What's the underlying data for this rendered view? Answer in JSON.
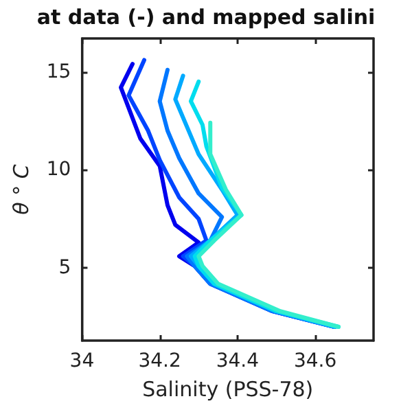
{
  "chart_data": {
    "type": "line",
    "title": "at data (-) and mapped salini",
    "xlabel": "Salinity (PSS-78)",
    "ylabel": "θ ° C",
    "xlim": [
      34,
      34.75
    ],
    "xticks": [
      34,
      34.2,
      34.4,
      34.6
    ],
    "ylim": [
      1.3,
      16.7
    ],
    "yticks": [
      5,
      10,
      15
    ],
    "grid": false,
    "marker": "none",
    "line_style": "solid",
    "series": [
      {
        "color": "#0000ee",
        "x": [
          34.65,
          34.49,
          34.33,
          34.29,
          34.25,
          34.3,
          34.24,
          34.22,
          34.2,
          34.15,
          34.1,
          34.13
        ],
        "values": [
          2.0,
          2.8,
          4.2,
          5.1,
          5.6,
          6.3,
          7.2,
          8.2,
          10.2,
          11.6,
          14.2,
          15.4
        ]
      },
      {
        "color": "#0044ff",
        "x": [
          34.65,
          34.49,
          34.33,
          34.29,
          34.26,
          34.32,
          34.3,
          34.25,
          34.2,
          34.17,
          34.12,
          34.16
        ],
        "values": [
          2.0,
          2.8,
          4.2,
          5.1,
          5.6,
          6.4,
          7.5,
          8.6,
          10.5,
          12.0,
          13.8,
          15.6
        ]
      },
      {
        "color": "#0077ff",
        "x": [
          34.65,
          34.49,
          34.33,
          34.29,
          34.27,
          34.33,
          34.36,
          34.3,
          34.25,
          34.22,
          34.2,
          34.22
        ],
        "values": [
          2.0,
          2.8,
          4.2,
          5.1,
          5.6,
          6.4,
          7.6,
          8.8,
          10.6,
          12.0,
          13.5,
          15.1
        ]
      },
      {
        "color": "#00aaff",
        "x": [
          34.65,
          34.5,
          34.34,
          34.3,
          34.28,
          34.33,
          34.4,
          34.36,
          34.3,
          34.27,
          34.24,
          34.26
        ],
        "values": [
          2.0,
          2.8,
          4.2,
          5.1,
          5.6,
          6.4,
          7.7,
          9.0,
          10.8,
          12.2,
          13.6,
          14.8
        ]
      },
      {
        "color": "#00ddee",
        "x": [
          34.66,
          34.5,
          34.34,
          34.3,
          34.29,
          34.33,
          34.41,
          34.36,
          34.32,
          34.31,
          34.28,
          34.3
        ],
        "values": [
          2.0,
          2.8,
          4.2,
          5.1,
          5.6,
          6.4,
          7.7,
          9.1,
          11.2,
          12.3,
          13.5,
          14.5
        ]
      },
      {
        "color": "#33eecc",
        "x": [
          34.66,
          34.51,
          34.35,
          34.31,
          34.3,
          34.34,
          34.41,
          34.37,
          34.33,
          34.33,
          34.33
        ],
        "values": [
          2.0,
          2.8,
          4.2,
          5.1,
          5.6,
          6.4,
          7.7,
          9.0,
          10.8,
          11.7,
          12.4
        ]
      }
    ]
  }
}
